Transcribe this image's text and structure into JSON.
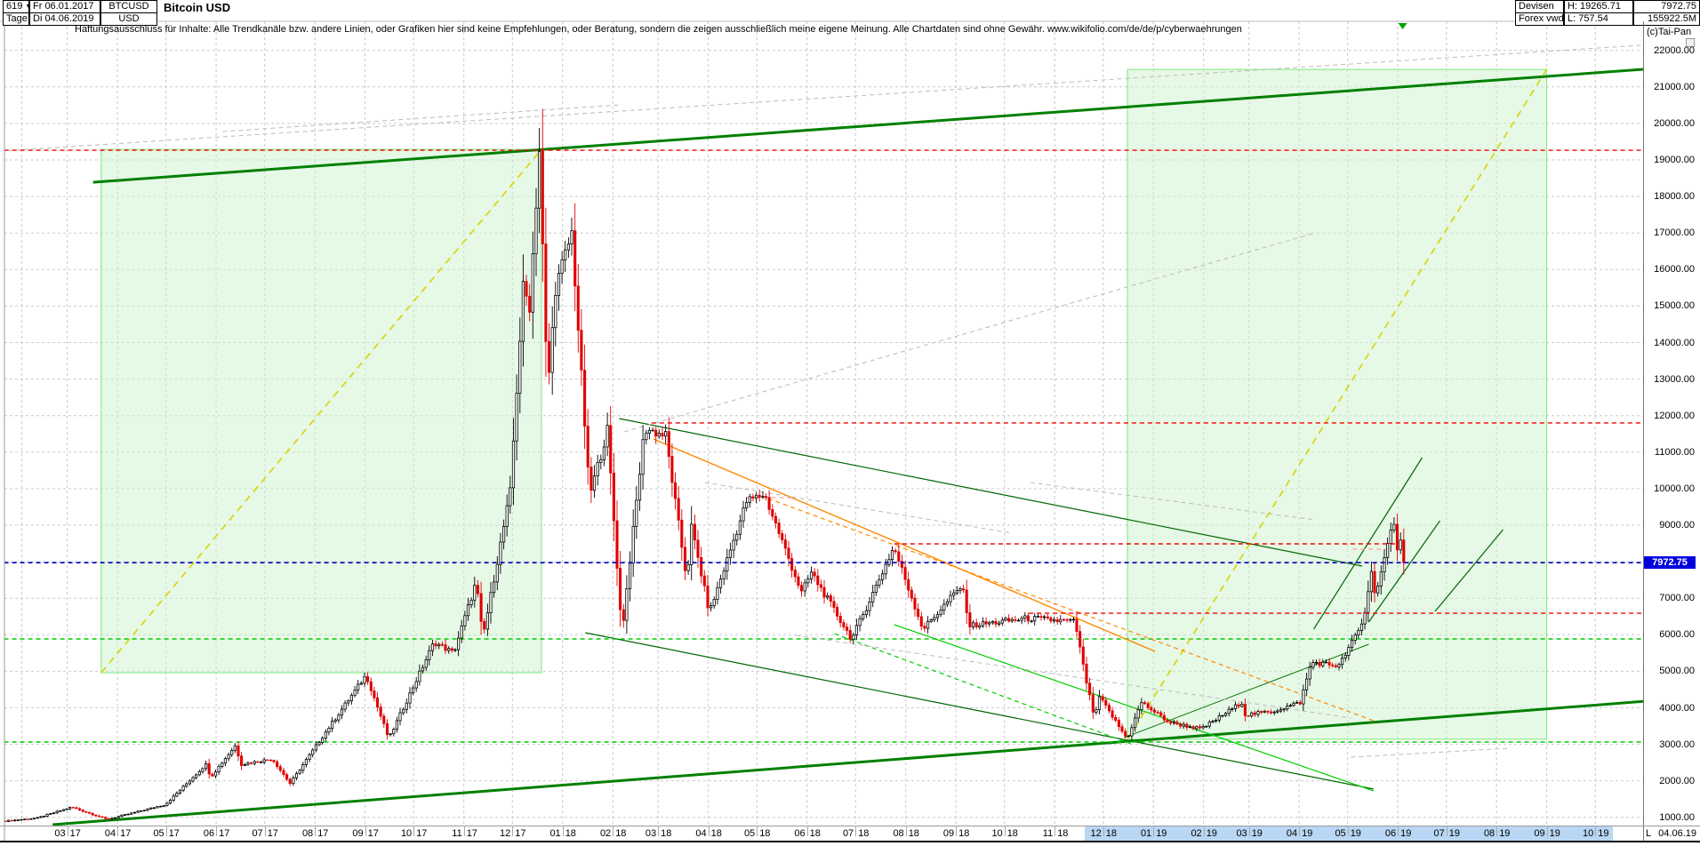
{
  "header": {
    "rows_left": [
      {
        "count": "619",
        "date": "Fr 06.01.2017",
        "symbol": "BTCUSD"
      },
      {
        "count": "Tage",
        "date": "Di 04.06.2019",
        "symbol": "USD"
      }
    ],
    "title": "Bitcoin USD",
    "rows_right": [
      {
        "type": "Devisen",
        "range": "H: 19265.71",
        "value": "7972.75"
      },
      {
        "type": "Forex vwd",
        "range": "L: 757.54",
        "value": "155922.5M"
      }
    ],
    "copyright": "(c)Tai-Pan"
  },
  "disclaimer": "Haftungsausschluss für Inhalte: Alle Trendkanäle bzw. andere Linien, oder Grafiken hier sind keine Empfehlungen, oder Beratung, sondern die zeigen ausschließlich meine eigene Meinung. Alle Chartdaten sind ohne Gewähr.  www.wikifolio.com/de/de/p/cyberwaehrungen",
  "price_tag": {
    "value": "7972.75",
    "color": "#0000dd"
  },
  "y_axis": {
    "labels": [
      "22000.00",
      "21000.00",
      "20000.00",
      "19000.00",
      "18000.00",
      "17000.00",
      "16000.00",
      "15000.00",
      "14000.00",
      "13000.00",
      "12000.00",
      "11000.00",
      "10000.00",
      "9000.00",
      "8000.00",
      "7000.00",
      "6000.00",
      "5000.00",
      "4000.00",
      "3000.00",
      "2000.00",
      "1000.00"
    ]
  },
  "x_axis": {
    "cursor": "L",
    "current": "04.06.19",
    "labels": [
      {
        "m": "03",
        "y": "17",
        "hl": false
      },
      {
        "m": "04",
        "y": "17",
        "hl": false
      },
      {
        "m": "05",
        "y": "17",
        "hl": false
      },
      {
        "m": "06",
        "y": "17",
        "hl": false
      },
      {
        "m": "07",
        "y": "17",
        "hl": false
      },
      {
        "m": "08",
        "y": "17",
        "hl": false
      },
      {
        "m": "09",
        "y": "17",
        "hl": false
      },
      {
        "m": "10",
        "y": "17",
        "hl": false
      },
      {
        "m": "11",
        "y": "17",
        "hl": false
      },
      {
        "m": "12",
        "y": "17",
        "hl": false
      },
      {
        "m": "01",
        "y": "18",
        "hl": false
      },
      {
        "m": "02",
        "y": "18",
        "hl": false
      },
      {
        "m": "03",
        "y": "18",
        "hl": false
      },
      {
        "m": "04",
        "y": "18",
        "hl": false
      },
      {
        "m": "05",
        "y": "18",
        "hl": false
      },
      {
        "m": "06",
        "y": "18",
        "hl": false
      },
      {
        "m": "07",
        "y": "18",
        "hl": false
      },
      {
        "m": "08",
        "y": "18",
        "hl": false
      },
      {
        "m": "09",
        "y": "18",
        "hl": false
      },
      {
        "m": "10",
        "y": "18",
        "hl": false
      },
      {
        "m": "11",
        "y": "18",
        "hl": false
      },
      {
        "m": "12",
        "y": "18",
        "hl": true
      },
      {
        "m": "01",
        "y": "19",
        "hl": true
      },
      {
        "m": "02",
        "y": "19",
        "hl": true
      },
      {
        "m": "03",
        "y": "19",
        "hl": true
      },
      {
        "m": "04",
        "y": "19",
        "hl": true
      },
      {
        "m": "05",
        "y": "19",
        "hl": true
      },
      {
        "m": "06",
        "y": "19",
        "hl": true
      },
      {
        "m": "07",
        "y": "19",
        "hl": true
      },
      {
        "m": "08",
        "y": "19",
        "hl": true
      },
      {
        "m": "09",
        "y": "19",
        "hl": true
      },
      {
        "m": "10",
        "y": "19",
        "hl": true
      }
    ]
  },
  "chart_data": {
    "type": "candlestick",
    "instrument": "BTCUSD",
    "period": "Tage",
    "title": "Bitcoin USD",
    "high": 19265.71,
    "low": 757.54,
    "last": 7972.75,
    "last_date": "2019-06-04",
    "x_visible": [
      "2017-01-21",
      "2019-11-30"
    ],
    "ylim": [
      500,
      22300
    ],
    "y_step": 1000,
    "grid": true,
    "bar_step_days": 2,
    "keyframes": [
      [
        "2017-01-21",
        900
      ],
      [
        "2017-02-10",
        985
      ],
      [
        "2017-03-03",
        1280
      ],
      [
        "2017-03-25",
        945
      ],
      [
        "2017-04-30",
        1350
      ],
      [
        "2017-05-25",
        2450
      ],
      [
        "2017-05-28",
        2100
      ],
      [
        "2017-06-12",
        2960
      ],
      [
        "2017-06-16",
        2450
      ],
      [
        "2017-07-05",
        2600
      ],
      [
        "2017-07-16",
        1930
      ],
      [
        "2017-08-08",
        3400
      ],
      [
        "2017-09-01",
        4900
      ],
      [
        "2017-09-15",
        3150
      ],
      [
        "2017-10-13",
        5800
      ],
      [
        "2017-10-25",
        5500
      ],
      [
        "2017-11-08",
        7450
      ],
      [
        "2017-11-12",
        5900
      ],
      [
        "2017-11-29",
        9900
      ],
      [
        "2017-12-08",
        16200
      ],
      [
        "2017-12-10",
        14300
      ],
      [
        "2017-12-17",
        19260
      ],
      [
        "2017-12-22",
        12600
      ],
      [
        "2017-12-27",
        15500
      ],
      [
        "2018-01-06",
        17000
      ],
      [
        "2018-01-17",
        9800
      ],
      [
        "2018-01-28",
        11600
      ],
      [
        "2018-02-06",
        6050
      ],
      [
        "2018-02-20",
        11650
      ],
      [
        "2018-03-05",
        11450
      ],
      [
        "2018-03-18",
        7500
      ],
      [
        "2018-03-21",
        8950
      ],
      [
        "2018-04-01",
        6600
      ],
      [
        "2018-04-24",
        9650
      ],
      [
        "2018-05-05",
        9850
      ],
      [
        "2018-05-28",
        7150
      ],
      [
        "2018-06-03",
        7700
      ],
      [
        "2018-06-28",
        5880
      ],
      [
        "2018-07-24",
        8400
      ],
      [
        "2018-08-11",
        6150
      ],
      [
        "2018-09-04",
        7350
      ],
      [
        "2018-09-09",
        6250
      ],
      [
        "2018-10-15",
        6450
      ],
      [
        "2018-11-13",
        6350
      ],
      [
        "2018-11-19",
        4900
      ],
      [
        "2018-11-25",
        3700
      ],
      [
        "2018-11-28",
        4300
      ],
      [
        "2018-12-15",
        3150
      ],
      [
        "2018-12-24",
        4150
      ],
      [
        "2019-01-10",
        3600
      ],
      [
        "2019-01-30",
        3420
      ],
      [
        "2019-02-24",
        4150
      ],
      [
        "2019-02-25",
        3800
      ],
      [
        "2019-03-15",
        3900
      ],
      [
        "2019-04-01",
        4150
      ],
      [
        "2019-04-08",
        5250
      ],
      [
        "2019-04-25",
        5150
      ],
      [
        "2019-05-10",
        6350
      ],
      [
        "2019-05-16",
        8050
      ],
      [
        "2019-05-17",
        7100
      ],
      [
        "2019-05-27",
        8750
      ],
      [
        "2019-05-30",
        9050
      ],
      [
        "2019-05-31",
        8250
      ],
      [
        "2019-06-02",
        8700
      ],
      [
        "2019-06-04",
        7972.75
      ]
    ],
    "boxes": [
      {
        "name": "projection-box-2017",
        "x": [
          "2017-03-22",
          "2017-12-19"
        ],
        "y": [
          4960,
          19290
        ],
        "fill": "rgba(205,242,205,0.5)",
        "edge": "#7de87d"
      },
      {
        "name": "projection-box-2019",
        "x": [
          "2018-12-16",
          "2019-09-01"
        ],
        "y": [
          3140,
          21480
        ],
        "fill": "rgba(205,242,205,0.5)",
        "edge": "#7de87d"
      }
    ],
    "overlays": [
      {
        "name": "major-uptrend-resistance",
        "color": "#008000",
        "w": 3,
        "dash": null,
        "pts": [
          [
            "2017-03-17",
            18390
          ],
          [
            "2019-11-30",
            21580
          ]
        ]
      },
      {
        "name": "major-uptrend-support",
        "color": "#008000",
        "w": 3,
        "dash": null,
        "pts": [
          [
            "2017-02-20",
            800
          ],
          [
            "2019-11-30",
            4280
          ]
        ]
      },
      {
        "name": "downtrend-2018-upper",
        "color": "#006600",
        "w": 1.2,
        "dash": null,
        "pts": [
          [
            "2018-02-05",
            11920
          ],
          [
            "2019-05-10",
            7880
          ]
        ]
      },
      {
        "name": "downtrend-2018-lower",
        "color": "#006600",
        "w": 1.2,
        "dash": null,
        "pts": [
          [
            "2018-01-15",
            6055
          ],
          [
            "2019-05-17",
            1775
          ]
        ]
      },
      {
        "name": "steep-downtrend-solid",
        "color": "#00cc00",
        "w": 1.2,
        "dash": null,
        "pts": [
          [
            "2018-07-25",
            6274
          ],
          [
            "2019-05-17",
            1725
          ]
        ]
      },
      {
        "name": "steep-downtrend-dashed",
        "color": "#00cc00",
        "w": 1.2,
        "dash": "5,4",
        "pts": [
          [
            "2018-06-18",
            6030
          ],
          [
            "2018-12-18",
            3017
          ]
        ]
      },
      {
        "name": "horizontal-support-5886",
        "color": "#00cc00",
        "w": 1.4,
        "dash": "5,4",
        "pts": [
          [
            "2017-01-21",
            5886
          ],
          [
            "2019-11-30",
            5886
          ]
        ]
      },
      {
        "name": "horizontal-support-3064",
        "color": "#00cc00",
        "w": 1.4,
        "dash": "5,4",
        "pts": [
          [
            "2017-01-21",
            3064
          ],
          [
            "2019-11-30",
            3064
          ]
        ]
      },
      {
        "name": "yellow-projection-2017",
        "color": "#d6d600",
        "w": 1.6,
        "dash": "8,6",
        "pts": [
          [
            "2017-03-22",
            4960
          ],
          [
            "2017-12-19",
            19290
          ]
        ]
      },
      {
        "name": "yellow-projection-2019",
        "color": "#d6d600",
        "w": 1.6,
        "dash": "8,6",
        "pts": [
          [
            "2018-12-16",
            3140
          ],
          [
            "2019-09-01",
            21480
          ]
        ]
      },
      {
        "name": "orange-downtrend-solid",
        "color": "#ff8800",
        "w": 1.4,
        "dash": null,
        "pts": [
          [
            "2018-02-26",
            11360
          ],
          [
            "2019-01-02",
            5544
          ]
        ]
      },
      {
        "name": "orange-downtrend-dashed",
        "color": "#ff8800",
        "w": 1.2,
        "dash": "5,4",
        "pts": [
          [
            "2018-05-08",
            9730
          ],
          [
            "2019-05-17",
            3648
          ]
        ]
      },
      {
        "name": "basing-support-2019",
        "color": "#007700",
        "w": 1,
        "dash": null,
        "pts": [
          [
            "2018-12-14",
            3186
          ],
          [
            "2019-05-14",
            5740
          ]
        ]
      },
      {
        "name": "rally-channel-a",
        "color": "#006600",
        "w": 1.2,
        "dash": null,
        "pts": [
          [
            "2019-04-10",
            6152
          ],
          [
            "2019-06-16",
            10848
          ]
        ]
      },
      {
        "name": "rally-channel-b",
        "color": "#006600",
        "w": 1.2,
        "dash": null,
        "pts": [
          [
            "2019-05-14",
            6347
          ],
          [
            "2019-06-27",
            9121
          ]
        ]
      },
      {
        "name": "rally-channel-c",
        "color": "#006600",
        "w": 1.2,
        "dash": null,
        "pts": [
          [
            "2019-06-24",
            6639
          ],
          [
            "2019-08-05",
            8878
          ]
        ]
      },
      {
        "name": "pink-level-2018",
        "color": "#ff9f9f",
        "w": 1.2,
        "dash": "5,4",
        "pts": [
          [
            "2018-04-25",
            9755
          ],
          [
            "2018-05-25",
            9755
          ]
        ]
      },
      {
        "name": "pink-level-2019",
        "color": "#ff9f9f",
        "w": 1.2,
        "dash": "5,4",
        "pts": [
          [
            "2019-05-04",
            8343
          ],
          [
            "2019-05-26",
            8343
          ]
        ]
      },
      {
        "name": "gray-channel-top",
        "color": "#bbbbbb",
        "w": 1,
        "dash": "5,4",
        "pts": [
          [
            "2017-01-18",
            19240
          ],
          [
            "2019-11-30",
            22230
          ]
        ]
      },
      {
        "name": "gray-channel-top2",
        "color": "#bbbbbb",
        "w": 1,
        "dash": "5,4",
        "pts": [
          [
            "2017-06-05",
            19778
          ],
          [
            "2018-02-06",
            20508
          ]
        ]
      },
      {
        "name": "gray-rising",
        "color": "#bbbbbb",
        "w": 1,
        "dash": "5,4",
        "pts": [
          [
            "2018-02-08",
            11555
          ],
          [
            "2019-04-11",
            17005
          ]
        ]
      },
      {
        "name": "gray-mid-1",
        "color": "#bbbbbb",
        "w": 1,
        "dash": "5,4",
        "pts": [
          [
            "2018-03-30",
            10168
          ],
          [
            "2018-10-06",
            8781
          ]
        ]
      },
      {
        "name": "gray-mid-2",
        "color": "#bbbbbb",
        "w": 1,
        "dash": "5,4",
        "pts": [
          [
            "2018-10-17",
            10168
          ],
          [
            "2019-04-11",
            9146
          ]
        ]
      },
      {
        "name": "gray-low-1",
        "color": "#bbbbbb",
        "w": 1,
        "dash": "5,4",
        "pts": [
          [
            "2018-05-25",
            5983
          ],
          [
            "2019-05-03",
            3721
          ]
        ]
      },
      {
        "name": "gray-low-2",
        "color": "#bbbbbb",
        "w": 1,
        "dash": "5,4",
        "pts": [
          [
            "2019-05-03",
            2650
          ],
          [
            "2019-08-09",
            2893
          ]
        ]
      }
    ],
    "levels": [
      {
        "name": "resistance-ath",
        "color": "#ff0000",
        "w": 1.4,
        "dash": "5,4",
        "pts": [
          [
            "2017-01-21",
            19265.71
          ],
          [
            "2019-11-30",
            19265.71
          ]
        ]
      },
      {
        "name": "resistance-11800",
        "color": "#ff0000",
        "w": 1.4,
        "dash": "5,4",
        "pts": [
          [
            "2018-02-25",
            11800
          ],
          [
            "2019-11-30",
            11800
          ]
        ]
      },
      {
        "name": "resistance-8490",
        "color": "#ff0000",
        "w": 1.4,
        "dash": "5,4",
        "pts": [
          [
            "2018-07-25",
            8490
          ],
          [
            "2019-05-31",
            8490
          ]
        ]
      },
      {
        "name": "resistance-6590",
        "color": "#ff0000",
        "w": 1.4,
        "dash": "5,4",
        "pts": [
          [
            "2018-10-16",
            6590
          ],
          [
            "2019-11-30",
            6590
          ]
        ]
      },
      {
        "name": "current-price-line",
        "color": "#0000cc",
        "w": 1.6,
        "dash": "5,4",
        "pts": [
          [
            "2017-01-21",
            7972.75
          ],
          [
            "2019-11-30",
            7972.75
          ]
        ]
      }
    ],
    "colors": {
      "candle_up_stroke": "#000000",
      "candle_up_fill": "#ffffff",
      "candle_down": "#e00000",
      "grid": "#c9c9c9",
      "marker": "#00a000"
    }
  }
}
